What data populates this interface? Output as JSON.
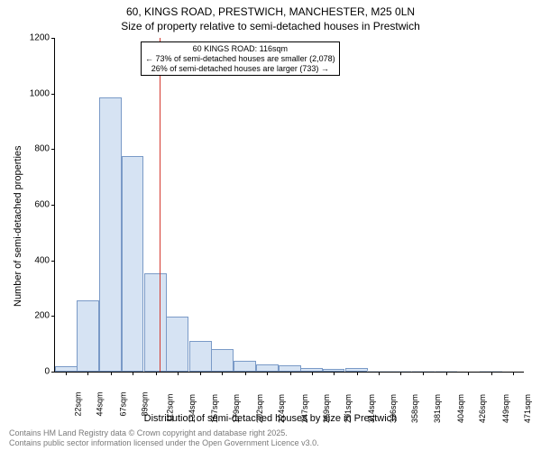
{
  "title_main": "60, KINGS ROAD, PRESTWICH, MANCHESTER, M25 0LN",
  "title_sub": "Size of property relative to semi-detached houses in Prestwich",
  "y_axis_label": "Number of semi-detached properties",
  "x_axis_label": "Distribution of semi-detached houses by size in Prestwich",
  "footer_line1": "Contains HM Land Registry data © Crown copyright and database right 2025.",
  "footer_line2": "Contains public sector information licensed under the Open Government Licence v3.0.",
  "chart": {
    "type": "histogram",
    "ylim": [
      0,
      1200
    ],
    "ytick_step": 200,
    "bar_fill": "#d6e3f3",
    "bar_stroke": "#7a9ac7",
    "ref_line_color": "#d43a2f",
    "ref_line_x_value": 116,
    "x_ticks": [
      22,
      44,
      67,
      89,
      112,
      134,
      157,
      179,
      202,
      224,
      247,
      269,
      291,
      314,
      336,
      358,
      381,
      404,
      426,
      449,
      471
    ],
    "x_tick_suffix": "sqm",
    "x_range": [
      11,
      482
    ],
    "categories": [
      22,
      44,
      67,
      89,
      112,
      134,
      157,
      179,
      202,
      224,
      247,
      269,
      291,
      314,
      336,
      358,
      381,
      404,
      426,
      449,
      471
    ],
    "values": [
      20,
      255,
      985,
      775,
      355,
      198,
      110,
      80,
      40,
      25,
      22,
      12,
      10,
      12,
      3,
      3,
      2,
      2,
      0,
      2,
      0
    ],
    "annotation": {
      "line1": "60 KINGS ROAD: 116sqm",
      "line2": "← 73% of semi-detached houses are smaller (2,078)",
      "line3": "26% of semi-detached houses are larger (733) →"
    }
  }
}
